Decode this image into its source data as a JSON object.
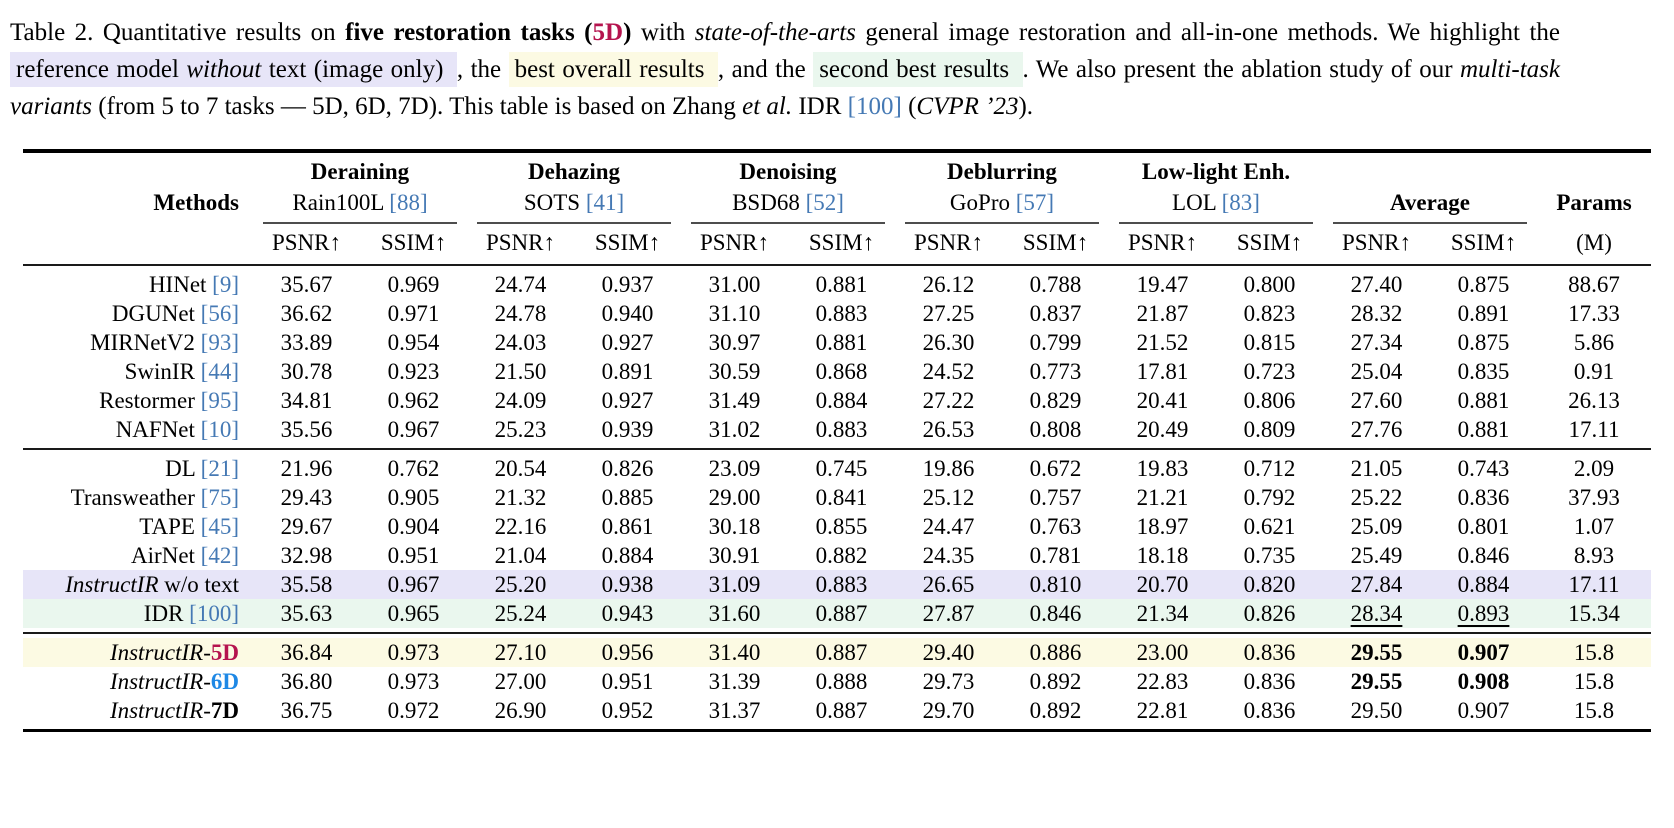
{
  "colors": {
    "citation_blue": "#4579b4",
    "crimson": "#b5134e",
    "bright_blue": "#1e88e5",
    "hl_lavender": "#e7e5f8",
    "hl_yellow": "#fcfae3",
    "hl_green": "#eaf7ee",
    "rule_thick": "#000000",
    "rule_thin": "#1a1a1a",
    "rule_mid": "#4d4d4d"
  },
  "caption": {
    "segments": [
      {
        "t": "Table 2.  Quantitative results on ",
        "s": "",
        "hl": ""
      },
      {
        "t": "five restoration tasks (",
        "s": "b",
        "hl": ""
      },
      {
        "t": "5D",
        "s": "b-crimson",
        "hl": ""
      },
      {
        "t": ")",
        "s": "b",
        "hl": ""
      },
      {
        "t": " with ",
        "s": "",
        "hl": ""
      },
      {
        "t": "state-of-the-arts",
        "s": "i",
        "hl": ""
      },
      {
        "t": " general image restoration and all-in-one methods. We highlight the ",
        "s": "",
        "hl": ""
      },
      {
        "t": " reference model ",
        "s": "",
        "hl": "lavender"
      },
      {
        "t": "without",
        "s": "i",
        "hl": "lavender"
      },
      {
        "t": " text (image only) ",
        "s": "",
        "hl": "lavender"
      },
      {
        "t": ", the ",
        "s": "",
        "hl": ""
      },
      {
        "t": " best overall results ",
        "s": "",
        "hl": "yellow"
      },
      {
        "t": ", and the ",
        "s": "",
        "hl": ""
      },
      {
        "t": " second best results ",
        "s": "",
        "hl": "green"
      },
      {
        "t": ". We also present the ablation study of our ",
        "s": "",
        "hl": ""
      },
      {
        "t": "multi-task variants",
        "s": "i",
        "hl": ""
      },
      {
        "t": " (from 5 to 7 tasks — 5D, 6D, 7D). This table is based on Zhang ",
        "s": "",
        "hl": ""
      },
      {
        "t": "et al.",
        "s": "i",
        "hl": ""
      },
      {
        "t": " IDR ",
        "s": "",
        "hl": ""
      },
      {
        "t": "[100]",
        "s": "cite",
        "hl": ""
      },
      {
        "t": " (",
        "s": "",
        "hl": ""
      },
      {
        "t": "CVPR ’23",
        "s": "i",
        "hl": ""
      },
      {
        "t": ").",
        "s": "",
        "hl": ""
      }
    ]
  },
  "table": {
    "methods_header": "Methods",
    "psnr_label": "PSNR↑",
    "ssim_label": "SSIM↑",
    "average_header": "Average",
    "params_header": "Params",
    "params_unit": "(M)",
    "task_groups": [
      {
        "task": "Deraining",
        "dataset": "Rain100L ",
        "cite": "[88]"
      },
      {
        "task": "Dehazing",
        "dataset": "SOTS ",
        "cite": "[41]"
      },
      {
        "task": "Denoising",
        "dataset": "BSD68 ",
        "cite": "[52]"
      },
      {
        "task": "Deblurring",
        "dataset": "GoPro ",
        "cite": "[57]"
      },
      {
        "task": "Low-light Enh.",
        "dataset": "LOL ",
        "cite": "[83]"
      }
    ],
    "groups": [
      {
        "rows": [
          {
            "method": [
              {
                "t": "HINet ",
                "s": ""
              },
              {
                "t": "[9]",
                "s": "cite"
              }
            ],
            "values": [
              "35.67",
              "0.969",
              "24.74",
              "0.937",
              "31.00",
              "0.881",
              "26.12",
              "0.788",
              "19.47",
              "0.800",
              "27.40",
              "0.875",
              "88.67"
            ],
            "hl": "",
            "bold": [],
            "underline": []
          },
          {
            "method": [
              {
                "t": "DGUNet ",
                "s": ""
              },
              {
                "t": "[56]",
                "s": "cite"
              }
            ],
            "values": [
              "36.62",
              "0.971",
              "24.78",
              "0.940",
              "31.10",
              "0.883",
              "27.25",
              "0.837",
              "21.87",
              "0.823",
              "28.32",
              "0.891",
              "17.33"
            ],
            "hl": "",
            "bold": [],
            "underline": []
          },
          {
            "method": [
              {
                "t": "MIRNetV2 ",
                "s": ""
              },
              {
                "t": "[93]",
                "s": "cite"
              }
            ],
            "values": [
              "33.89",
              "0.954",
              "24.03",
              "0.927",
              "30.97",
              "0.881",
              "26.30",
              "0.799",
              "21.52",
              "0.815",
              "27.34",
              "0.875",
              "5.86"
            ],
            "hl": "",
            "bold": [],
            "underline": []
          },
          {
            "method": [
              {
                "t": "SwinIR ",
                "s": ""
              },
              {
                "t": "[44]",
                "s": "cite"
              }
            ],
            "values": [
              "30.78",
              "0.923",
              "21.50",
              "0.891",
              "30.59",
              "0.868",
              "24.52",
              "0.773",
              "17.81",
              "0.723",
              "25.04",
              "0.835",
              "0.91"
            ],
            "hl": "",
            "bold": [],
            "underline": []
          },
          {
            "method": [
              {
                "t": "Restormer ",
                "s": ""
              },
              {
                "t": "[95]",
                "s": "cite"
              }
            ],
            "values": [
              "34.81",
              "0.962",
              "24.09",
              "0.927",
              "31.49",
              "0.884",
              "27.22",
              "0.829",
              "20.41",
              "0.806",
              "27.60",
              "0.881",
              "26.13"
            ],
            "hl": "",
            "bold": [],
            "underline": []
          },
          {
            "method": [
              {
                "t": "NAFNet ",
                "s": ""
              },
              {
                "t": "[10]",
                "s": "cite"
              }
            ],
            "values": [
              "35.56",
              "0.967",
              "25.23",
              "0.939",
              "31.02",
              "0.883",
              "26.53",
              "0.808",
              "20.49",
              "0.809",
              "27.76",
              "0.881",
              "17.11"
            ],
            "hl": "",
            "bold": [],
            "underline": []
          }
        ]
      },
      {
        "rows": [
          {
            "method": [
              {
                "t": "DL ",
                "s": ""
              },
              {
                "t": "[21]",
                "s": "cite"
              }
            ],
            "values": [
              "21.96",
              "0.762",
              "20.54",
              "0.826",
              "23.09",
              "0.745",
              "19.86",
              "0.672",
              "19.83",
              "0.712",
              "21.05",
              "0.743",
              "2.09"
            ],
            "hl": "",
            "bold": [],
            "underline": []
          },
          {
            "method": [
              {
                "t": "Transweather ",
                "s": ""
              },
              {
                "t": "[75]",
                "s": "cite"
              }
            ],
            "values": [
              "29.43",
              "0.905",
              "21.32",
              "0.885",
              "29.00",
              "0.841",
              "25.12",
              "0.757",
              "21.21",
              "0.792",
              "25.22",
              "0.836",
              "37.93"
            ],
            "hl": "",
            "bold": [],
            "underline": []
          },
          {
            "method": [
              {
                "t": "TAPE ",
                "s": ""
              },
              {
                "t": "[45]",
                "s": "cite"
              }
            ],
            "values": [
              "29.67",
              "0.904",
              "22.16",
              "0.861",
              "30.18",
              "0.855",
              "24.47",
              "0.763",
              "18.97",
              "0.621",
              "25.09",
              "0.801",
              "1.07"
            ],
            "hl": "",
            "bold": [],
            "underline": []
          },
          {
            "method": [
              {
                "t": "AirNet ",
                "s": ""
              },
              {
                "t": "[42]",
                "s": "cite"
              }
            ],
            "values": [
              "32.98",
              "0.951",
              "21.04",
              "0.884",
              "30.91",
              "0.882",
              "24.35",
              "0.781",
              "18.18",
              "0.735",
              "25.49",
              "0.846",
              "8.93"
            ],
            "hl": "",
            "bold": [],
            "underline": []
          },
          {
            "method": [
              {
                "t": "InstructIR",
                "s": "i"
              },
              {
                "t": " w/o text",
                "s": ""
              }
            ],
            "values": [
              "35.58",
              "0.967",
              "25.20",
              "0.938",
              "31.09",
              "0.883",
              "26.65",
              "0.810",
              "20.70",
              "0.820",
              "27.84",
              "0.884",
              "17.11"
            ],
            "hl": "lavender",
            "bold": [],
            "underline": []
          },
          {
            "method": [
              {
                "t": "IDR ",
                "s": ""
              },
              {
                "t": "[100]",
                "s": "cite"
              }
            ],
            "values": [
              "35.63",
              "0.965",
              "25.24",
              "0.943",
              "31.60",
              "0.887",
              "27.87",
              "0.846",
              "21.34",
              "0.826",
              "28.34",
              "0.893",
              "15.34"
            ],
            "hl": "green",
            "bold": [],
            "underline": [
              10,
              11
            ]
          }
        ]
      },
      {
        "rows": [
          {
            "method": [
              {
                "t": "InstructIR",
                "s": "i"
              },
              {
                "t": "-",
                "s": ""
              },
              {
                "t": "5D",
                "s": "b-crimson"
              }
            ],
            "values": [
              "36.84",
              "0.973",
              "27.10",
              "0.956",
              "31.40",
              "0.887",
              "29.40",
              "0.886",
              "23.00",
              "0.836",
              "29.55",
              "0.907",
              "15.8"
            ],
            "hl": "yellow",
            "bold": [
              10,
              11
            ],
            "underline": []
          },
          {
            "method": [
              {
                "t": "InstructIR",
                "s": "i"
              },
              {
                "t": "-",
                "s": ""
              },
              {
                "t": "6D",
                "s": "b-blue"
              }
            ],
            "values": [
              "36.80",
              "0.973",
              "27.00",
              "0.951",
              "31.39",
              "0.888",
              "29.73",
              "0.892",
              "22.83",
              "0.836",
              "29.55",
              "0.908",
              "15.8"
            ],
            "hl": "",
            "bold": [
              10,
              11
            ],
            "underline": []
          },
          {
            "method": [
              {
                "t": "InstructIR",
                "s": "i"
              },
              {
                "t": "-",
                "s": ""
              },
              {
                "t": "7D",
                "s": "b"
              }
            ],
            "values": [
              "36.75",
              "0.972",
              "26.90",
              "0.952",
              "31.37",
              "0.887",
              "29.70",
              "0.892",
              "22.81",
              "0.836",
              "29.50",
              "0.907",
              "15.8"
            ],
            "hl": "",
            "bold": [],
            "underline": []
          }
        ]
      }
    ]
  }
}
